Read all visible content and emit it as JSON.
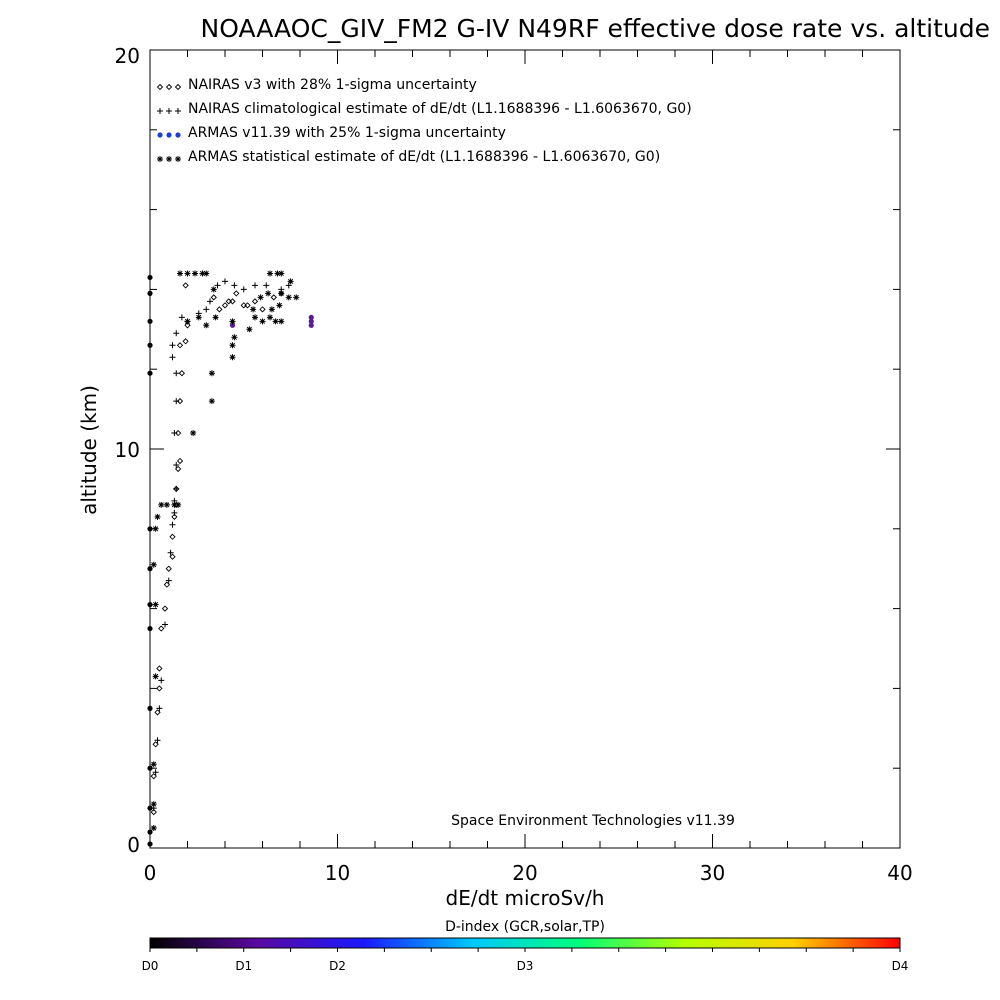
{
  "chart_data": {
    "type": "scatter",
    "title": "NOAAAOC_GIV_FM2 G-IV   N49RF  effective dose rate vs. altitude",
    "xlabel": "dE/dt microSv/h",
    "ylabel": "altitude (km)",
    "xlim": [
      0,
      40
    ],
    "ylim": [
      0,
      20
    ],
    "x_ticks": [
      "0",
      "10",
      "20",
      "30",
      "40"
    ],
    "y_ticks": [
      "0",
      "10",
      "20"
    ],
    "grid": false,
    "legend_position": "top-left",
    "credit": "Space Environment Technologies v11.39",
    "colorbar": {
      "title": "D-index (GCR,solar,TP)",
      "labels": [
        {
          "text": "D0",
          "at": 0
        },
        {
          "text": "D1",
          "at": 0.125
        },
        {
          "text": "D2",
          "at": 0.25
        },
        {
          "text": "D3",
          "at": 0.5
        },
        {
          "text": "D4",
          "at": 1
        }
      ],
      "colors": [
        "#000000",
        "#5a0aa0",
        "#1a1aff",
        "#00c8ff",
        "#00ff7a",
        "#b4ff00",
        "#ffd000",
        "#ff0000"
      ]
    },
    "series": [
      {
        "name": "NAIRAS v3 with 28% 1-sigma uncertainty",
        "marker": "diamond",
        "color": "#000000",
        "points": [
          [
            0.2,
            0.9
          ],
          [
            0.2,
            1.8
          ],
          [
            0.3,
            2.6
          ],
          [
            0.4,
            3.4
          ],
          [
            0.5,
            4.0
          ],
          [
            0.5,
            4.5
          ],
          [
            0.6,
            5.5
          ],
          [
            0.8,
            6.0
          ],
          [
            0.9,
            6.6
          ],
          [
            1.0,
            7.0
          ],
          [
            1.2,
            7.3
          ],
          [
            1.2,
            7.8
          ],
          [
            1.3,
            8.3
          ],
          [
            1.4,
            8.6
          ],
          [
            1.4,
            9.0
          ],
          [
            1.5,
            9.5
          ],
          [
            1.6,
            9.7
          ],
          [
            1.5,
            10.4
          ],
          [
            1.6,
            11.2
          ],
          [
            1.7,
            11.9
          ],
          [
            1.6,
            12.6
          ],
          [
            1.9,
            12.7
          ],
          [
            2.0,
            13.1
          ],
          [
            1.9,
            14.1
          ],
          [
            3.4,
            13.8
          ],
          [
            3.7,
            13.5
          ],
          [
            4.0,
            13.6
          ],
          [
            4.2,
            13.7
          ],
          [
            4.4,
            13.7
          ],
          [
            4.6,
            13.9
          ],
          [
            5.0,
            13.6
          ],
          [
            5.2,
            13.6
          ],
          [
            5.6,
            13.7
          ],
          [
            6.0,
            13.5
          ],
          [
            6.6,
            13.8
          ],
          [
            7.0,
            13.9
          ]
        ]
      },
      {
        "name": "NAIRAS climatological estimate of dE/dt (L1.1688396 - L1.6063670, G0)",
        "marker": "plus",
        "color": "#000000",
        "points": [
          [
            0.2,
            1.0
          ],
          [
            0.3,
            1.9
          ],
          [
            0.4,
            2.7
          ],
          [
            0.5,
            3.5
          ],
          [
            0.6,
            4.2
          ],
          [
            0.8,
            5.6
          ],
          [
            1.0,
            6.7
          ],
          [
            1.1,
            7.4
          ],
          [
            1.2,
            8.1
          ],
          [
            1.3,
            8.4
          ],
          [
            1.3,
            8.7
          ],
          [
            1.4,
            9.0
          ],
          [
            1.4,
            9.6
          ],
          [
            1.3,
            10.4
          ],
          [
            1.4,
            11.2
          ],
          [
            1.4,
            11.9
          ],
          [
            1.2,
            12.3
          ],
          [
            1.2,
            12.6
          ],
          [
            1.4,
            12.9
          ],
          [
            1.7,
            13.3
          ],
          [
            2.0,
            13.2
          ],
          [
            2.6,
            13.4
          ],
          [
            3.0,
            13.5
          ],
          [
            3.2,
            13.7
          ],
          [
            3.6,
            14.1
          ],
          [
            4.0,
            14.2
          ],
          [
            4.5,
            14.1
          ],
          [
            5.0,
            14.0
          ],
          [
            5.6,
            14.1
          ],
          [
            6.2,
            14.1
          ],
          [
            7.0,
            14.0
          ],
          [
            7.4,
            14.1
          ]
        ]
      },
      {
        "name": "ARMAS v11.39 with 25% 1-sigma uncertainty",
        "marker": "circle",
        "color": "#1a3fd6",
        "points": [
          [
            0.0,
            0.1
          ],
          [
            0.0,
            0.4
          ],
          [
            0.0,
            1.0
          ],
          [
            0.0,
            2.0
          ],
          [
            0.0,
            3.5
          ],
          [
            0.0,
            5.5
          ],
          [
            0.0,
            6.1
          ],
          [
            0.0,
            7.0
          ],
          [
            0.0,
            8.0
          ],
          [
            0.0,
            11.9
          ],
          [
            0.0,
            12.6
          ],
          [
            0.0,
            13.2
          ],
          [
            0.0,
            13.9
          ],
          [
            0.0,
            14.3
          ],
          [
            4.4,
            13.1
          ],
          [
            8.6,
            13.1
          ],
          [
            8.6,
            13.2
          ],
          [
            8.6,
            13.3
          ]
        ]
      },
      {
        "name": "ARMAS statistical estimate of dE/dt (L1.1688396 - L1.6063670, G0)",
        "marker": "asterisk",
        "color": "#000000",
        "points": [
          [
            0.2,
            0.5
          ],
          [
            0.2,
            1.1
          ],
          [
            0.2,
            2.1
          ],
          [
            0.3,
            4.3
          ],
          [
            0.3,
            6.1
          ],
          [
            0.2,
            7.1
          ],
          [
            0.3,
            8.0
          ],
          [
            0.4,
            8.3
          ],
          [
            0.6,
            8.6
          ],
          [
            0.9,
            8.6
          ],
          [
            1.3,
            8.6
          ],
          [
            1.5,
            8.6
          ],
          [
            2.3,
            10.4
          ],
          [
            3.3,
            11.2
          ],
          [
            3.3,
            11.9
          ],
          [
            4.4,
            12.3
          ],
          [
            4.4,
            12.6
          ],
          [
            4.5,
            12.8
          ],
          [
            5.3,
            13.0
          ],
          [
            2.0,
            13.2
          ],
          [
            2.6,
            13.3
          ],
          [
            3.0,
            13.1
          ],
          [
            3.5,
            13.3
          ],
          [
            4.4,
            13.2
          ],
          [
            5.6,
            13.3
          ],
          [
            6.0,
            13.2
          ],
          [
            6.4,
            13.3
          ],
          [
            6.7,
            13.2
          ],
          [
            7.0,
            13.2
          ],
          [
            5.5,
            13.5
          ],
          [
            6.5,
            13.5
          ],
          [
            6.9,
            13.6
          ],
          [
            5.9,
            13.8
          ],
          [
            6.3,
            13.9
          ],
          [
            7.0,
            13.9
          ],
          [
            7.4,
            13.8
          ],
          [
            7.8,
            13.8
          ],
          [
            3.4,
            14.0
          ],
          [
            7.5,
            14.2
          ],
          [
            1.6,
            14.4
          ],
          [
            2.0,
            14.4
          ],
          [
            2.4,
            14.4
          ],
          [
            2.8,
            14.4
          ],
          [
            3.0,
            14.4
          ],
          [
            6.4,
            14.4
          ],
          [
            6.8,
            14.4
          ],
          [
            7.0,
            14.4
          ]
        ]
      }
    ]
  }
}
